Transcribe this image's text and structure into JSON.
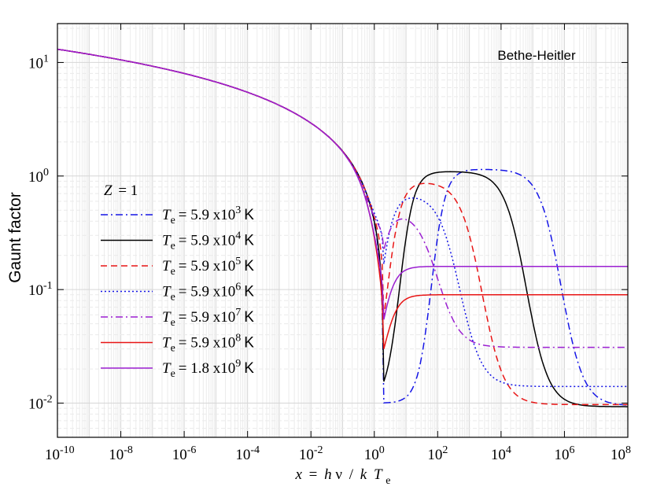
{
  "chart_data": {
    "type": "line",
    "title": "",
    "annotation": "Bethe-Heitler",
    "xlabel": {
      "x": "x",
      "eq": "=",
      "h": "h",
      "nu": "ν",
      "slash": "/",
      "k": "k",
      "T": "T",
      "sub": "e"
    },
    "ylabel": "Gaunt factor",
    "xscale": "log",
    "yscale": "log",
    "xlim_exp": [
      -10,
      8
    ],
    "ylim": [
      0.005,
      22
    ],
    "grid": true,
    "legend_position": "center-left",
    "legend_title": {
      "Z": "Z",
      "eq": "= 1"
    },
    "x_ticks": [
      {
        "exp": -10,
        "base": "10",
        "sup": "-10"
      },
      {
        "exp": -8,
        "base": "10",
        "sup": "-8"
      },
      {
        "exp": -6,
        "base": "10",
        "sup": "-6"
      },
      {
        "exp": -4,
        "base": "10",
        "sup": "-4"
      },
      {
        "exp": -2,
        "base": "10",
        "sup": "-2"
      },
      {
        "exp": 0,
        "base": "10",
        "sup": "0"
      },
      {
        "exp": 2,
        "base": "10",
        "sup": "2"
      },
      {
        "exp": 4,
        "base": "10",
        "sup": "4"
      },
      {
        "exp": 6,
        "base": "10",
        "sup": "6"
      },
      {
        "exp": 8,
        "base": "10",
        "sup": "8"
      }
    ],
    "y_ticks": [
      {
        "value": 10,
        "base": "10",
        "sup": "1"
      },
      {
        "value": 1,
        "base": "10",
        "sup": "0"
      },
      {
        "value": 0.1,
        "base": "10",
        "sup": "-1"
      },
      {
        "value": 0.01,
        "base": "10",
        "sup": "-2"
      }
    ],
    "series": [
      {
        "label_T": "T",
        "label_sub": "e",
        "label_eq": "= 5.9 x10",
        "label_sup": "3",
        "label_unit": "K",
        "color": "#1515e6",
        "dash": "dashdot",
        "plateau": 1.15,
        "drop1": 1.8,
        "final": 0.0095,
        "drop2": 5.9
      },
      {
        "label_T": "T",
        "label_sub": "e",
        "label_eq": "= 5.9 x10",
        "label_sup": "4",
        "label_unit": "K",
        "color": "#000000",
        "dash": "solid",
        "plateau": 1.1,
        "drop1": 0.8,
        "final": 0.0093,
        "drop2": 4.8
      },
      {
        "label_T": "T",
        "label_sub": "e",
        "label_eq": "= 5.9 x10",
        "label_sup": "5",
        "label_unit": "K",
        "color": "#e81515",
        "dash": "dashed",
        "plateau": 0.9,
        "drop1": 0.4,
        "final": 0.0097,
        "drop2": 3.4
      },
      {
        "label_T": "T",
        "label_sub": "e",
        "label_eq": "= 5.9 x10",
        "label_sup": "6",
        "label_unit": "K",
        "color": "#1515e6",
        "dash": "dotted",
        "plateau": 0.7,
        "drop1": 0.15,
        "final": 0.014,
        "drop2": 2.7
      },
      {
        "label_T": "T",
        "label_sub": "e",
        "label_eq": "= 5.9 x10",
        "label_sup": "7",
        "label_unit": "K",
        "color": "#9b1fd1",
        "dash": "dashdot",
        "plateau": 0.5,
        "drop1": 0.0,
        "final": 0.031,
        "drop2": 2.0
      },
      {
        "label_T": "T",
        "label_sub": "e",
        "label_eq": "= 5.9 x10",
        "label_sup": "8",
        "label_unit": "K",
        "color": "#e81515",
        "dash": "solid",
        "plateau": 0.09,
        "drop1": 0.3,
        "final": 0.09,
        "drop2": 1.0
      },
      {
        "label_T": "T",
        "label_sub": "e",
        "label_eq": "= 1.8 x10",
        "label_sup": "9",
        "label_unit": "K",
        "color": "#9b1fd1",
        "dash": "solid",
        "plateau": 0.16,
        "drop1": 0.2,
        "final": 0.16,
        "drop2": 0.7
      }
    ]
  }
}
